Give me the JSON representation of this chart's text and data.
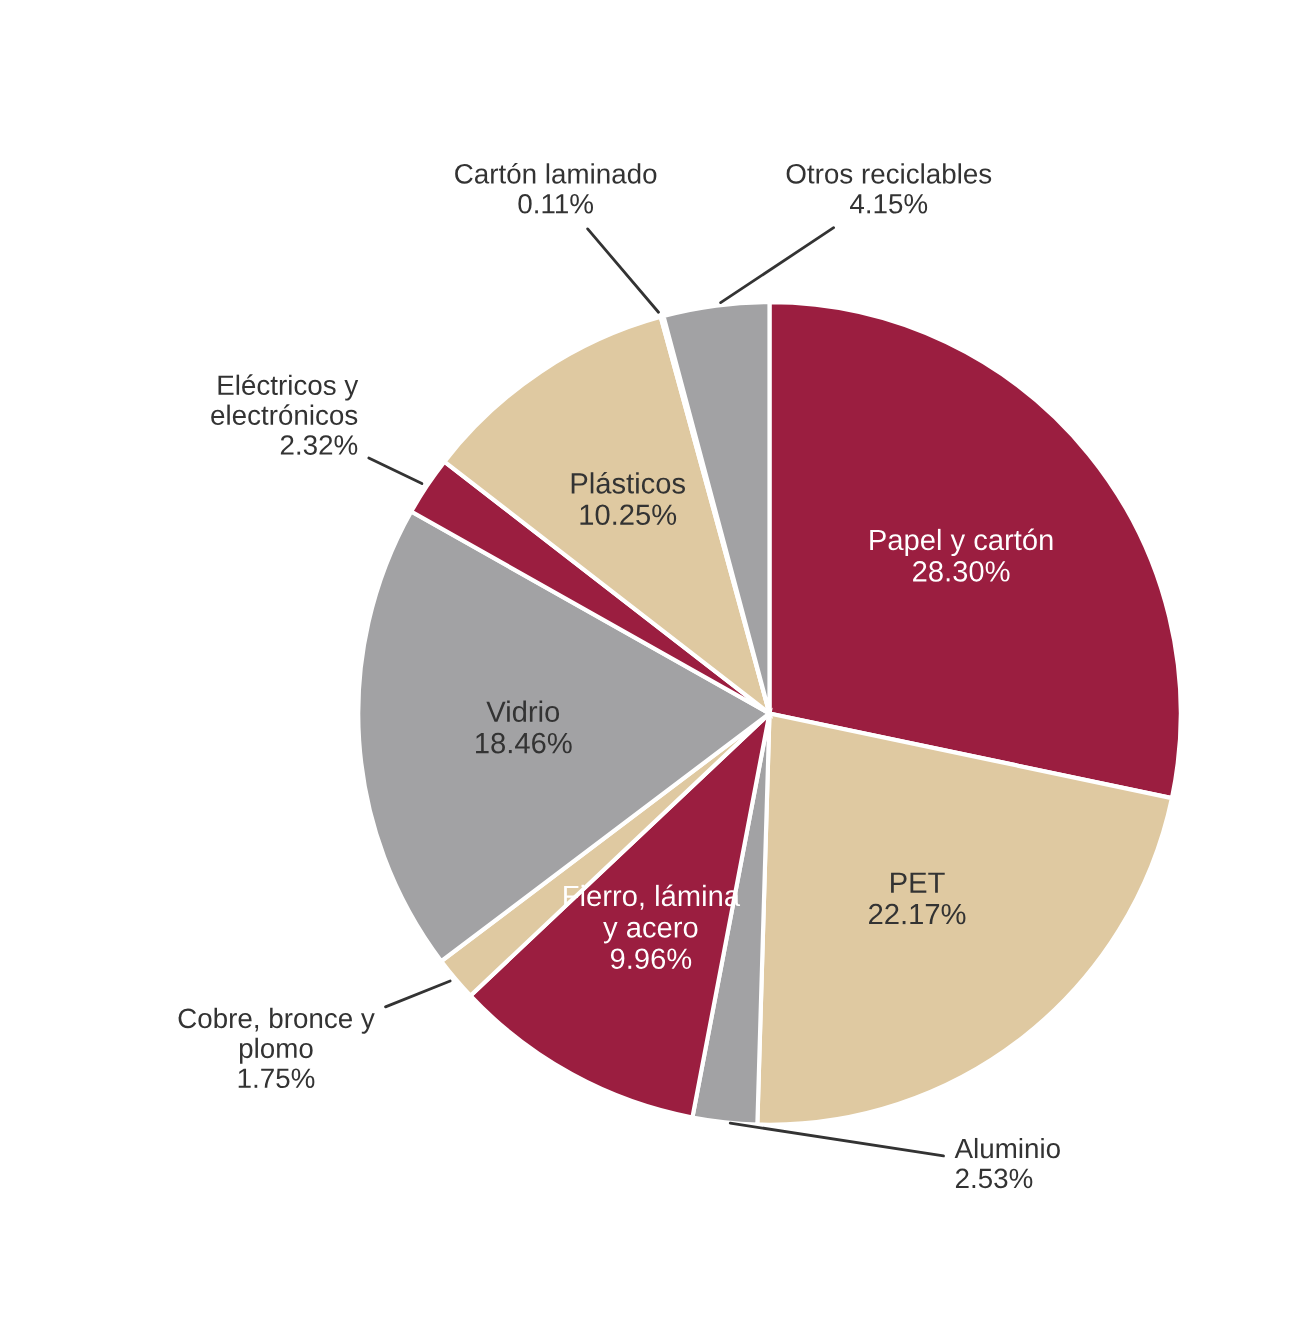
{
  "chart_data": {
    "type": "pie",
    "categories": [
      "Papel y cartón",
      "PET",
      "Aluminio",
      "Fierro, lámina\ny acero",
      "Cobre, bronce y\nplomo",
      "Vidrio",
      "Eléctricos y\nelectrónicos",
      "Plásticos",
      "Cartón laminado",
      "Otros reciclables"
    ],
    "values": [
      28.3,
      22.17,
      2.53,
      9.96,
      1.75,
      18.46,
      2.32,
      10.25,
      0.11,
      4.15
    ],
    "value_labels": [
      "28.30%",
      "22.17%",
      "2.53%",
      "9.96%",
      "1.75%",
      "18.46%",
      "2.32%",
      "10.25%",
      "0.11%",
      "4.15%"
    ],
    "colors": [
      "#9b1e40",
      "#dfc9a1",
      "#a2a2a4",
      "#9b1e40",
      "#dfc9a1",
      "#a2a2a4",
      "#9b1e40",
      "#dfc9a1",
      "#dfc9a1",
      "#a2a2a4"
    ]
  }
}
